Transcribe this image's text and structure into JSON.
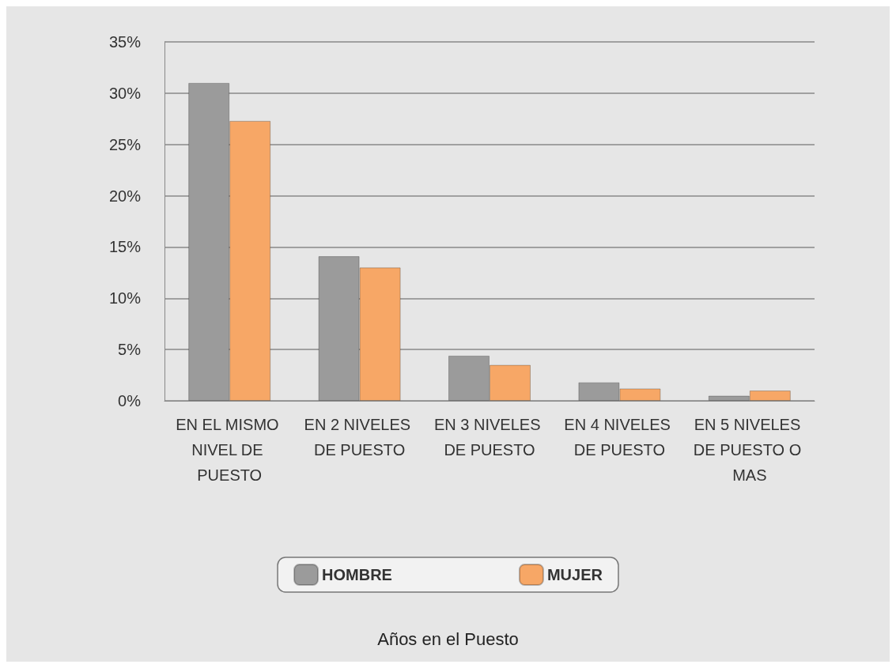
{
  "chart_data": {
    "type": "bar",
    "annotations": [
      "Años en el Puesto"
    ],
    "categories": [
      "EN EL MISMO NIVEL DE PUESTO",
      "EN 2 NIVELES DE PUESTO",
      "EN 3 NIVELES DE PUESTO",
      "EN 4 NIVELES DE PUESTO",
      "EN 5 NIVELES DE PUESTO O MAS"
    ],
    "series": [
      {
        "name": "HOMBRE",
        "color": "#9b9b9b",
        "values": [
          31,
          14.1,
          4.4,
          1.8,
          0.5
        ]
      },
      {
        "name": "MUJER",
        "color": "#f7a766",
        "values": [
          27.3,
          13,
          3.5,
          1.2,
          1.0
        ]
      }
    ],
    "ylim": [
      0,
      35
    ],
    "yticks": [
      {
        "value": 0,
        "label": "0%"
      },
      {
        "value": 5,
        "label": "5%"
      },
      {
        "value": 10,
        "label": "10%"
      },
      {
        "value": 15,
        "label": "15%"
      },
      {
        "value": 20,
        "label": "20%"
      },
      {
        "value": 25,
        "label": "25%"
      },
      {
        "value": 30,
        "label": "30%"
      },
      {
        "value": 35,
        "label": "35%"
      }
    ],
    "grid": "y",
    "legend": "bottom"
  }
}
